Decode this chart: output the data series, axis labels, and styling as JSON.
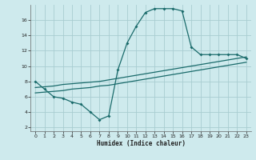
{
  "bg_color": "#ceeaed",
  "grid_color": "#a8cdd1",
  "line_color": "#1a6b6b",
  "xlabel": "Humidex (Indice chaleur)",
  "xlim": [
    -0.5,
    23.5
  ],
  "ylim": [
    1.5,
    18.0
  ],
  "yticks": [
    2,
    4,
    6,
    8,
    10,
    12,
    14,
    16
  ],
  "xticks": [
    0,
    1,
    2,
    3,
    4,
    5,
    6,
    7,
    8,
    9,
    10,
    11,
    12,
    13,
    14,
    15,
    16,
    17,
    18,
    19,
    20,
    21,
    22,
    23
  ],
  "curve1_x": [
    0,
    1,
    2,
    3,
    4,
    5,
    6,
    7,
    8,
    9,
    10,
    11,
    12,
    13,
    14,
    15,
    16,
    17,
    18,
    19,
    20,
    21,
    22,
    23
  ],
  "curve1_y": [
    8.0,
    7.0,
    6.0,
    5.8,
    5.3,
    5.0,
    4.0,
    3.0,
    3.5,
    9.5,
    13.0,
    15.2,
    17.0,
    17.5,
    17.5,
    17.5,
    17.2,
    12.5,
    11.5,
    11.5,
    11.5,
    11.5,
    11.5,
    11.0
  ],
  "line2_x": [
    0,
    1,
    2,
    3,
    4,
    5,
    6,
    7,
    8,
    9,
    10,
    11,
    12,
    13,
    14,
    15,
    16,
    17,
    18,
    19,
    20,
    21,
    22,
    23
  ],
  "line2_y": [
    7.2,
    7.3,
    7.4,
    7.6,
    7.7,
    7.8,
    7.9,
    8.0,
    8.2,
    8.4,
    8.6,
    8.8,
    9.0,
    9.2,
    9.4,
    9.6,
    9.8,
    10.0,
    10.2,
    10.4,
    10.6,
    10.8,
    11.0,
    11.2
  ],
  "line3_x": [
    0,
    1,
    2,
    3,
    4,
    5,
    6,
    7,
    8,
    9,
    10,
    11,
    12,
    13,
    14,
    15,
    16,
    17,
    18,
    19,
    20,
    21,
    22,
    23
  ],
  "line3_y": [
    6.5,
    6.6,
    6.7,
    6.8,
    7.0,
    7.1,
    7.2,
    7.4,
    7.5,
    7.7,
    7.9,
    8.1,
    8.3,
    8.5,
    8.7,
    8.9,
    9.1,
    9.3,
    9.5,
    9.7,
    9.9,
    10.1,
    10.3,
    10.5
  ]
}
